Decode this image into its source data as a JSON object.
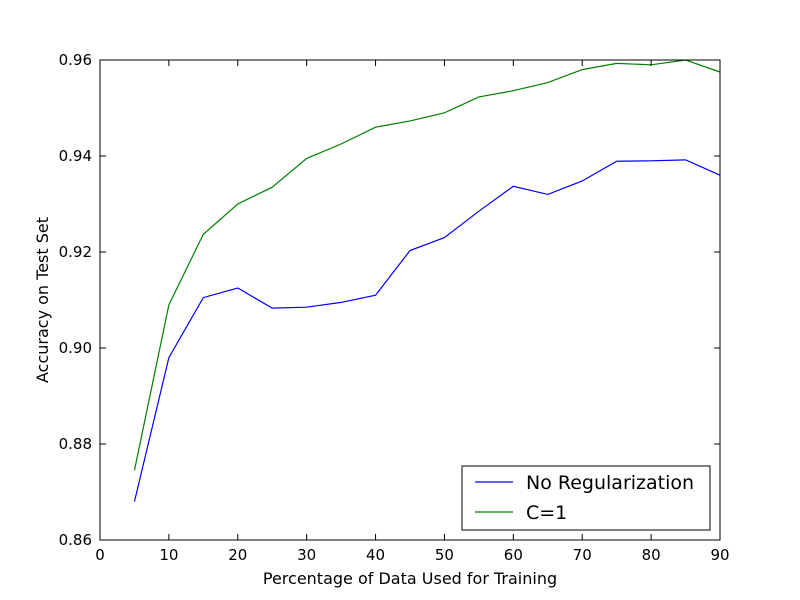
{
  "chart_data": {
    "type": "line",
    "xlabel": "Percentage of Data Used for Training",
    "ylabel": "Accuracy on Test Set",
    "xlim": [
      0,
      90
    ],
    "ylim": [
      0.86,
      0.96
    ],
    "xticks": [
      "0",
      "10",
      "20",
      "30",
      "40",
      "50",
      "60",
      "70",
      "80",
      "90"
    ],
    "yticks": [
      "0.86",
      "0.88",
      "0.90",
      "0.92",
      "0.94",
      "0.96"
    ],
    "grid": false,
    "legend_position": "lower-right",
    "x": [
      5,
      10,
      15,
      20,
      25,
      30,
      35,
      40,
      45,
      50,
      55,
      60,
      65,
      70,
      75,
      80,
      85,
      90
    ],
    "series": [
      {
        "name": "No Regularization",
        "color": "#0000ff",
        "values": [
          0.868,
          0.898,
          0.9105,
          0.9125,
          0.9083,
          0.9085,
          0.9095,
          0.911,
          0.9203,
          0.923,
          0.9285,
          0.9337,
          0.932,
          0.9348,
          0.9389,
          0.939,
          0.9392,
          0.936
        ]
      },
      {
        "name": "C=1",
        "color": "#008000",
        "values": [
          0.8745,
          0.909,
          0.9237,
          0.93,
          0.9335,
          0.9395,
          0.9425,
          0.946,
          0.9473,
          0.949,
          0.9523,
          0.9536,
          0.9553,
          0.958,
          0.9593,
          0.959,
          0.96,
          0.9575
        ]
      }
    ]
  }
}
